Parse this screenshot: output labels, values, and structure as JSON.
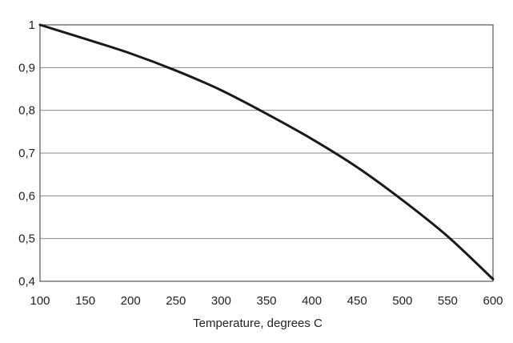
{
  "chart_data": {
    "type": "line",
    "title": "",
    "xlabel": "Temperature, degrees C",
    "ylabel": "",
    "xlim": [
      100,
      600
    ],
    "ylim": [
      0.4,
      1.0
    ],
    "x_ticks": [
      100,
      150,
      200,
      250,
      300,
      350,
      400,
      450,
      500,
      550,
      600
    ],
    "x_tick_labels": [
      "100",
      "150",
      "200",
      "250",
      "300",
      "350",
      "400",
      "450",
      "500",
      "550",
      "600"
    ],
    "y_ticks": [
      0.4,
      0.5,
      0.6,
      0.7,
      0.8,
      0.9,
      1.0
    ],
    "y_tick_labels": [
      "0,4",
      "0,5",
      "0,6",
      "0,7",
      "0,8",
      "0,9",
      "1"
    ],
    "grid": "horizontal",
    "legend": "none",
    "line_color": "#1a1a1a",
    "grid_color": "#8a8a8a",
    "series": [
      {
        "x": [
          100,
          150,
          200,
          250,
          300,
          350,
          400,
          450,
          500,
          550,
          600
        ],
        "y": [
          1.0,
          0.967,
          0.933,
          0.893,
          0.847,
          0.792,
          0.733,
          0.667,
          0.59,
          0.505,
          0.405
        ]
      }
    ]
  }
}
